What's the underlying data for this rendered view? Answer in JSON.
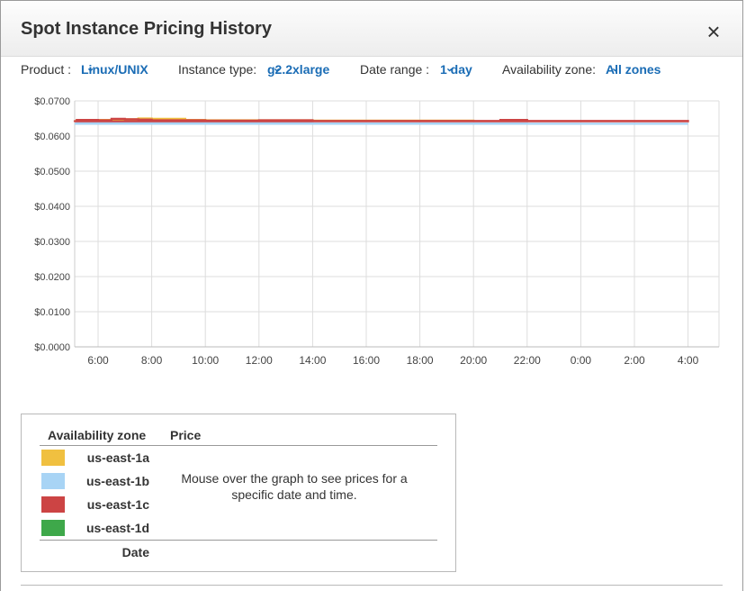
{
  "dialog": {
    "title": "Spot Instance Pricing History",
    "close": "×"
  },
  "filters": {
    "product_label": "Product :",
    "product_value": "Linux/UNIX",
    "instance_label": "Instance type:",
    "instance_value": "g2.2xlarge",
    "date_label": "Date range :",
    "date_value": "1 day",
    "zone_label": "Availability zone:",
    "zone_value": "All zones",
    "chevron": "⌄"
  },
  "chart_data": {
    "type": "line",
    "y_ticks": [
      "$0.0700",
      "$0.0600",
      "$0.0500",
      "$0.0400",
      "$0.0300",
      "$0.0200",
      "$0.0100",
      "$0.0000"
    ],
    "x_ticks": [
      "6:00",
      "8:00",
      "10:00",
      "12:00",
      "14:00",
      "16:00",
      "18:00",
      "20:00",
      "22:00",
      "0:00",
      "2:00",
      "4:00"
    ],
    "ylim": [
      0,
      0.07
    ],
    "grid": true,
    "series": [
      {
        "name": "us-east-1a",
        "color": "#f0c040",
        "x": [
          "5:10",
          "6:30",
          "7:30",
          "8:00",
          "9:15",
          "10:00",
          "14:00",
          "20:00",
          "5:00"
        ],
        "values": [
          0.0646,
          0.0648,
          0.065,
          0.0649,
          0.0646,
          0.0645,
          0.0644,
          0.0643,
          0.0643
        ]
      },
      {
        "name": "us-east-1b",
        "color": "#a8d4f5",
        "x": [
          "5:10",
          "6:00",
          "8:00",
          "10:00",
          "12:00",
          "14:00",
          "16:00",
          "18:00",
          "20:00",
          "22:00",
          "0:00",
          "2:00",
          "4:00",
          "5:00"
        ],
        "values": [
          0.064,
          0.0639,
          0.0638,
          0.0637,
          0.0637,
          0.0636,
          0.0636,
          0.0636,
          0.0636,
          0.0635,
          0.0635,
          0.0635,
          0.0635,
          0.0635
        ]
      },
      {
        "name": "us-east-1c",
        "color": "#cc4444",
        "x": [
          "5:10",
          "6:00",
          "6:30",
          "7:00",
          "7:30",
          "8:00",
          "9:00",
          "10:00",
          "12:00",
          "14:00",
          "16:00",
          "18:00",
          "20:00",
          "21:00",
          "22:00",
          "0:00",
          "2:00",
          "4:00",
          "4:40",
          "5:00"
        ],
        "values": [
          0.0646,
          0.0645,
          0.0649,
          0.0648,
          0.0647,
          0.0645,
          0.0645,
          0.0644,
          0.0645,
          0.0643,
          0.0643,
          0.0643,
          0.0643,
          0.0646,
          0.0643,
          0.0643,
          0.0643,
          0.0642,
          0.064,
          0.0642
        ]
      },
      {
        "name": "us-east-1d",
        "color": "#3ea84a",
        "x": [],
        "values": []
      }
    ]
  },
  "legend": {
    "col_zone": "Availability zone",
    "col_price": "Price",
    "zones": [
      {
        "name": "us-east-1a",
        "color": "#f0c040"
      },
      {
        "name": "us-east-1b",
        "color": "#a8d4f5"
      },
      {
        "name": "us-east-1c",
        "color": "#cc4444"
      },
      {
        "name": "us-east-1d",
        "color": "#3ea84a"
      }
    ],
    "message": "Mouse over the graph to see prices for a specific date and time.",
    "date_label": "Date"
  }
}
